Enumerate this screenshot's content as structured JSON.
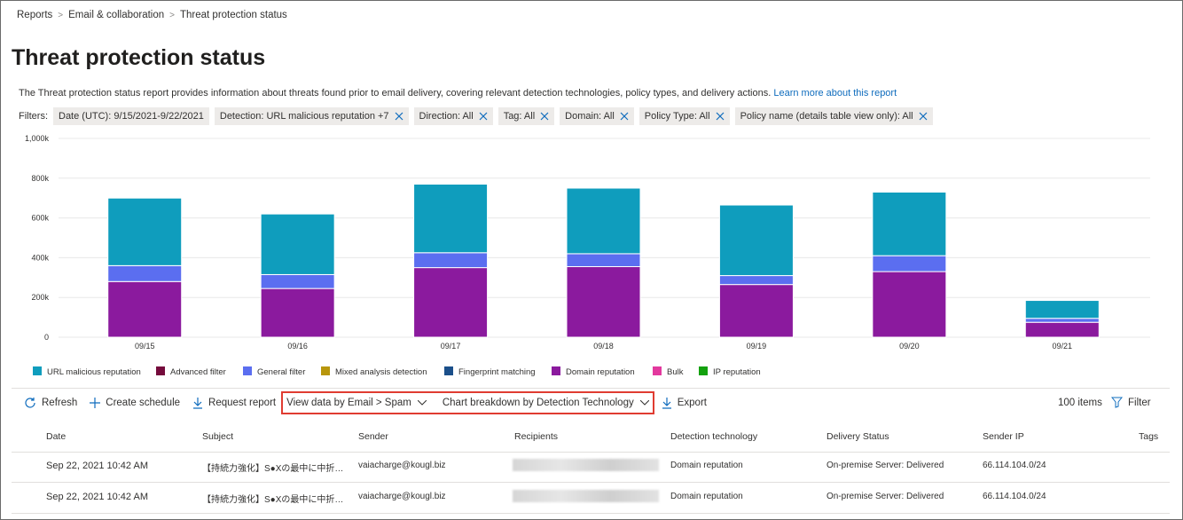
{
  "breadcrumb": [
    "Reports",
    "Email & collaboration",
    "Threat protection status"
  ],
  "title": "Threat protection status",
  "description": "The Threat protection status report provides information about threats found prior to email delivery, covering relevant detection technologies, policy types, and delivery actions.",
  "learn_more": "Learn more about this report",
  "filters": {
    "label": "Filters:",
    "chips": [
      "Date (UTC): 9/15/2021-9/22/2021",
      "Detection: URL malicious reputation +7",
      "Direction: All",
      "Tag: All",
      "Domain: All",
      "Policy Type: All",
      "Policy name (details table view only): All"
    ]
  },
  "chart_data": {
    "type": "bar",
    "stacked": true,
    "categories": [
      "09/15",
      "09/16",
      "09/17",
      "09/18",
      "09/19",
      "09/20",
      "09/21"
    ],
    "series": [
      {
        "name": "URL malicious reputation",
        "color": "#0f9dbd",
        "values": [
          340,
          305,
          345,
          330,
          355,
          320,
          90
        ]
      },
      {
        "name": "Advanced filter",
        "color": "#750b3c",
        "values": [
          0,
          0,
          0,
          0,
          0,
          0,
          0
        ]
      },
      {
        "name": "General filter",
        "color": "#5b6ef0",
        "values": [
          80,
          70,
          75,
          65,
          45,
          80,
          20
        ]
      },
      {
        "name": "Mixed analysis detection",
        "color": "#b8960c",
        "values": [
          0,
          0,
          0,
          0,
          0,
          0,
          0
        ]
      },
      {
        "name": "Fingerprint matching",
        "color": "#1b4f8a",
        "values": [
          0,
          0,
          0,
          0,
          0,
          0,
          0
        ]
      },
      {
        "name": "Domain reputation",
        "color": "#8b1a9e",
        "values": [
          280,
          245,
          350,
          355,
          265,
          330,
          75
        ]
      },
      {
        "name": "Bulk",
        "color": "#e3399e",
        "values": [
          0,
          0,
          0,
          0,
          0,
          0,
          0
        ]
      },
      {
        "name": "IP reputation",
        "color": "#13a10e",
        "values": [
          0,
          0,
          0,
          0,
          0,
          0,
          0
        ]
      }
    ],
    "ylim": [
      0,
      1000
    ],
    "yticks": [
      0,
      {
        "value": 200,
        "label": "200k"
      },
      {
        "value": 400,
        "label": "400k"
      },
      {
        "value": 600,
        "label": "600k"
      },
      {
        "value": 800,
        "label": "800k"
      },
      {
        "value": 1000,
        "label": "1,000k"
      }
    ],
    "grid": true
  },
  "toolbar": {
    "refresh": "Refresh",
    "create_schedule": "Create schedule",
    "request_report": "Request report",
    "view_data": "View data by Email > Spam",
    "chart_breakdown": "Chart breakdown by Detection Technology",
    "export": "Export",
    "items": "100 items",
    "filter": "Filter"
  },
  "table": {
    "columns": [
      "Date",
      "Subject",
      "Sender",
      "Recipients",
      "Detection technology",
      "Delivery Status",
      "Sender IP",
      "Tags"
    ],
    "rows": [
      {
        "date": "Sep 22, 2021 10:42 AM",
        "subject": "【持続力強化】S●Xの最中に中折れし…",
        "sender": "vaiacharge@kougl.biz",
        "detection": "Domain reputation",
        "status": "On-premise Server: Delivered",
        "ip": "66.114.104.0/24"
      },
      {
        "date": "Sep 22, 2021 10:42 AM",
        "subject": "【持続力強化】S●Xの最中に中折れし…",
        "sender": "vaiacharge@kougl.biz",
        "detection": "Domain reputation",
        "status": "On-premise Server: Delivered",
        "ip": "66.114.104.0/24"
      }
    ]
  }
}
